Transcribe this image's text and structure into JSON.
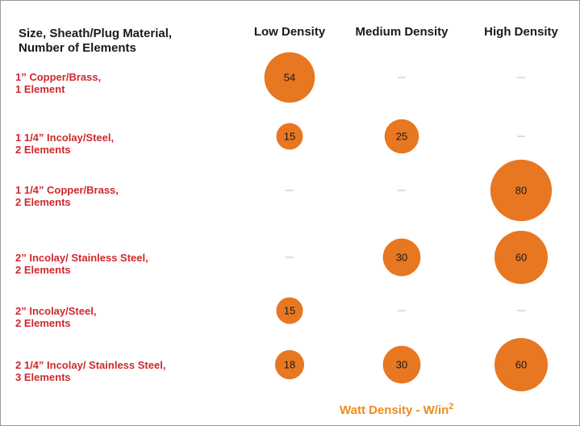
{
  "chart_data": {
    "type": "bubble-matrix",
    "row_header": [
      "Size, Sheath/Plug Material,",
      "Number of Elements"
    ],
    "categories": [
      "Low Density",
      "Medium Density",
      "High Density"
    ],
    "rows": [
      {
        "label": [
          "1” Copper/Brass,",
          "1 Element"
        ],
        "values": [
          54,
          null,
          null
        ]
      },
      {
        "label": [
          "1 1/4” Incolay/Steel,",
          "2 Elements"
        ],
        "values": [
          15,
          25,
          null
        ]
      },
      {
        "label": [
          "1 1/4” Copper/Brass,",
          "2 Elements"
        ],
        "values": [
          null,
          null,
          80
        ]
      },
      {
        "label": [
          "2” Incolay/ Stainless Steel,",
          "2 Elements"
        ],
        "values": [
          null,
          30,
          60
        ]
      },
      {
        "label": [
          "2” Incolay/Steel,",
          "2 Elements"
        ],
        "values": [
          15,
          null,
          null
        ]
      },
      {
        "label": [
          "2 1/4” Incolay/ Stainless Steel,",
          "3 Elements"
        ],
        "values": [
          18,
          30,
          60
        ]
      }
    ],
    "empty_marker": "—",
    "value_axis_label": "Watt Density - W/in",
    "value_axis_label_superscript": "2",
    "colors": {
      "bubble": "#e87722",
      "row_label": "#d0282e",
      "footer": "#f08a1c"
    }
  }
}
